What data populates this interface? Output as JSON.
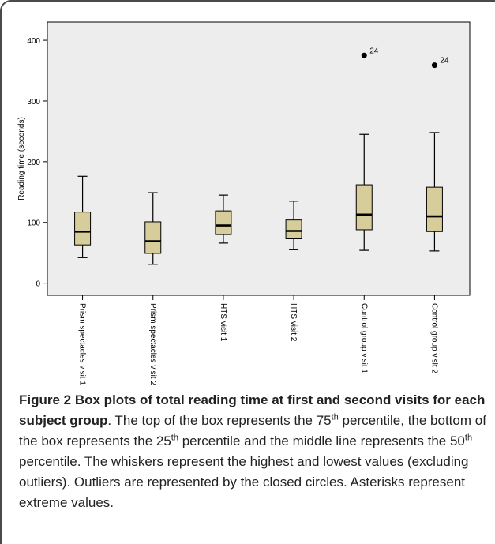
{
  "chart_data": {
    "type": "boxplot",
    "ylabel": "Reading time (seconds)",
    "xlabel": "",
    "ylim": [
      -20,
      430
    ],
    "yticks": [
      0,
      100,
      200,
      300,
      400
    ],
    "grid": false,
    "plot_background": "#ededed",
    "box_color": "#d6cd9a",
    "categories": [
      "Prism spectacles visit 1",
      "Prism spectacles visit 2",
      "HTS visit 1",
      "HTS visit 2",
      "Control group visit 1",
      "Control group visit 2"
    ],
    "boxes": [
      {
        "min": 42,
        "q1": 63,
        "median": 85,
        "q3": 117,
        "max": 176
      },
      {
        "min": 31,
        "q1": 49,
        "median": 69,
        "q3": 101,
        "max": 149
      },
      {
        "min": 66,
        "q1": 80,
        "median": 95,
        "q3": 119,
        "max": 145
      },
      {
        "min": 55,
        "q1": 73,
        "median": 86,
        "q3": 104,
        "max": 135
      },
      {
        "min": 54,
        "q1": 88,
        "median": 113,
        "q3": 162,
        "max": 245
      },
      {
        "min": 53,
        "q1": 85,
        "median": 110,
        "q3": 158,
        "max": 248
      }
    ],
    "outliers": [
      {
        "category_index": 4,
        "value": 375,
        "label": "24"
      },
      {
        "category_index": 5,
        "value": 359,
        "label": "24"
      }
    ]
  },
  "caption": {
    "lead": "Figure 2 Box plots of total reading time at first and second visits for each subject group",
    "p1": ". The top of the box represents the 75",
    "s1": "th",
    "p2": " percentile, the bottom of the box represents the 25",
    "s2": "th",
    "p3": " percentile and the middle line represents the 50",
    "s3": "th",
    "p4": " percentile. The whiskers represent the highest and lowest values (excluding outliers). Outliers are represented by the closed circles. Asterisks represent extreme values."
  }
}
